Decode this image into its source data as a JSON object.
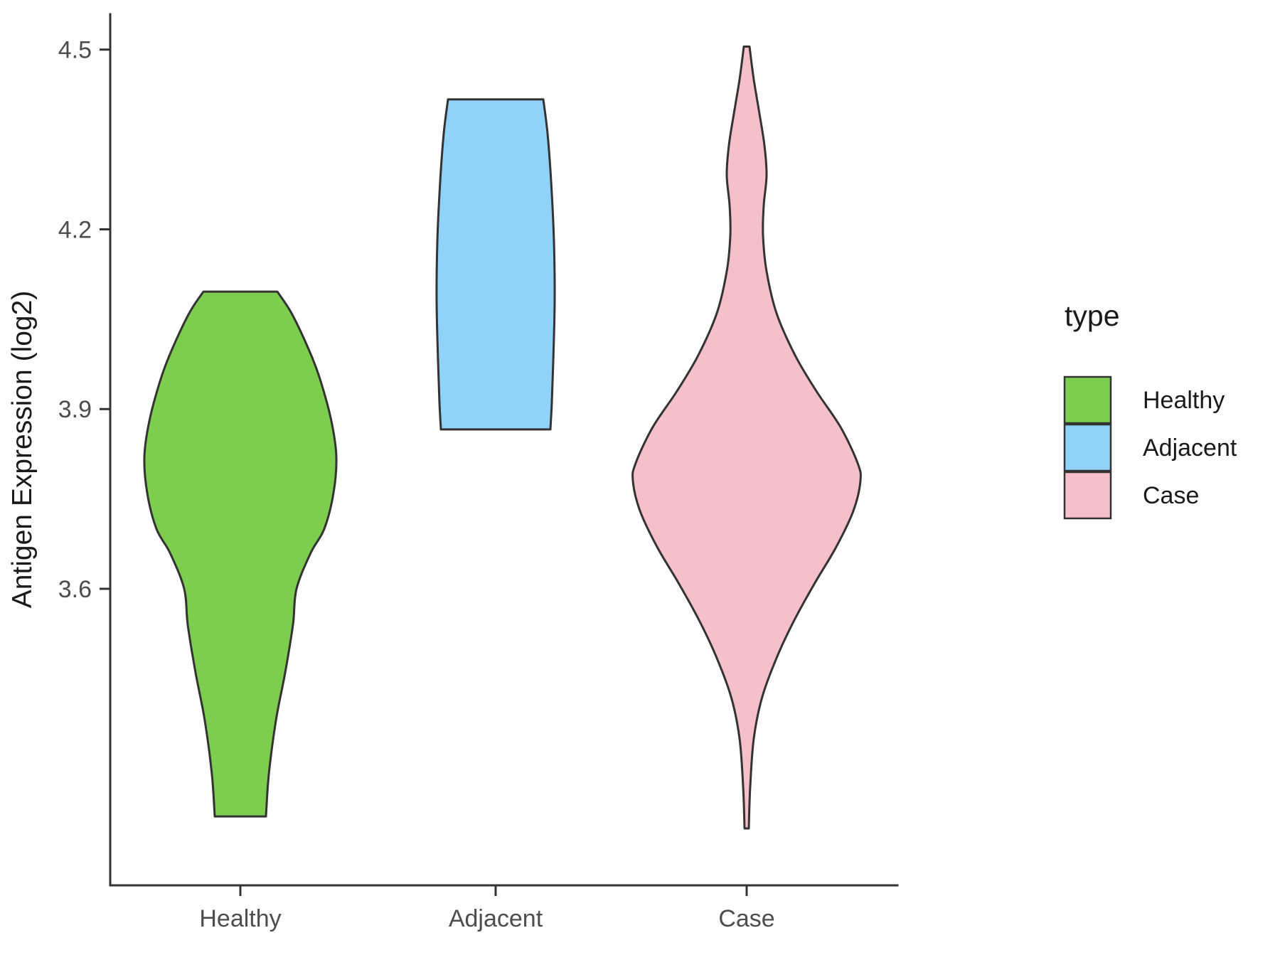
{
  "chart_data": {
    "type": "violin",
    "title": "",
    "xlabel": "",
    "ylabel": "Antigen Expression (log2)",
    "categories": [
      "Healthy",
      "Adjacent",
      "Case"
    ],
    "y_axis": {
      "tick_labels": [
        "3.6",
        "3.9",
        "4.2",
        "4.5"
      ],
      "tick_values": [
        3.6,
        3.9,
        4.2,
        4.5
      ],
      "range": [
        3.1,
        4.55
      ]
    },
    "x_axis": {
      "tick_labels": [
        "Healthy",
        "Adjacent",
        "Case"
      ]
    },
    "grid": "off",
    "legend": {
      "title": "type",
      "position": "right",
      "entries": [
        {
          "label": "Healthy",
          "color": "#7DCE4E"
        },
        {
          "label": "Adjacent",
          "color": "#90D2F8"
        },
        {
          "label": "Case",
          "color": "#F5C0CA"
        }
      ]
    },
    "series": [
      {
        "name": "Healthy",
        "color": "#7DCE4E",
        "outline": "#333333",
        "y_min": 3.22,
        "y_max": 4.1,
        "truncated_top": true,
        "truncated_bottom": true,
        "profile": [
          [
            4.096,
            52
          ],
          [
            4.06,
            72
          ],
          [
            4.0,
            96
          ],
          [
            3.95,
            112
          ],
          [
            3.88,
            128
          ],
          [
            3.82,
            135
          ],
          [
            3.76,
            131
          ],
          [
            3.7,
            118
          ],
          [
            3.66,
            99
          ],
          [
            3.6,
            79
          ],
          [
            3.54,
            74
          ],
          [
            3.46,
            63
          ],
          [
            3.38,
            50
          ],
          [
            3.29,
            40
          ],
          [
            3.22,
            36
          ]
        ]
      },
      {
        "name": "Adjacent",
        "color": "#90D2F8",
        "outline": "#333333",
        "y_min": 3.87,
        "y_max": 4.42,
        "truncated_top": true,
        "truncated_bottom": true,
        "profile": [
          [
            4.417,
            67
          ],
          [
            4.36,
            73
          ],
          [
            4.28,
            78
          ],
          [
            4.18,
            82
          ],
          [
            4.08,
            83
          ],
          [
            3.98,
            81
          ],
          [
            3.91,
            79
          ],
          [
            3.866,
            77
          ]
        ]
      },
      {
        "name": "Case",
        "color": "#F5C0CA",
        "outline": "#333333",
        "y_min": 3.2,
        "y_max": 4.5,
        "truncated_top": false,
        "truncated_bottom": false,
        "profile": [
          [
            4.505,
            4
          ],
          [
            4.45,
            10
          ],
          [
            4.4,
            17
          ],
          [
            4.34,
            25
          ],
          [
            4.29,
            28
          ],
          [
            4.24,
            24
          ],
          [
            4.19,
            23
          ],
          [
            4.13,
            28
          ],
          [
            4.06,
            42
          ],
          [
            3.99,
            68
          ],
          [
            3.93,
            98
          ],
          [
            3.87,
            132
          ],
          [
            3.81,
            156
          ],
          [
            3.78,
            160
          ],
          [
            3.73,
            150
          ],
          [
            3.67,
            126
          ],
          [
            3.61,
            96
          ],
          [
            3.55,
            68
          ],
          [
            3.49,
            44
          ],
          [
            3.42,
            22
          ],
          [
            3.35,
            10
          ],
          [
            3.27,
            5
          ],
          [
            3.2,
            3
          ]
        ]
      }
    ]
  },
  "colors": {
    "axis": "#333333",
    "tick_text": "#4D4D4D",
    "text": "#1A1A1A",
    "background": "#FFFFFF"
  }
}
